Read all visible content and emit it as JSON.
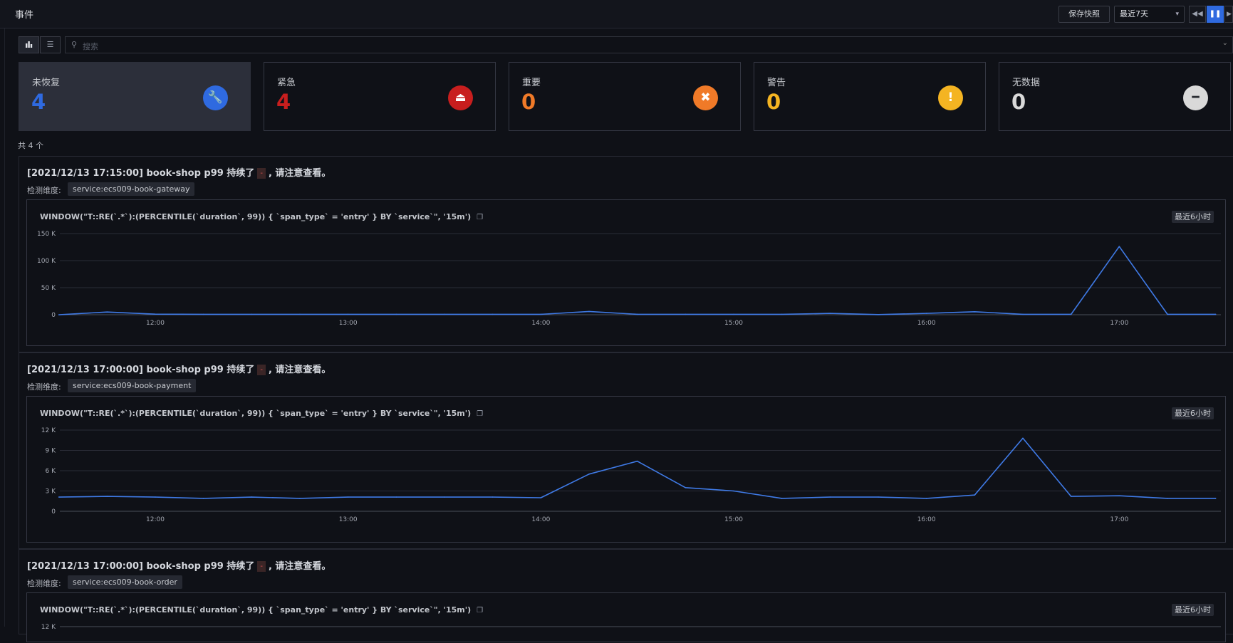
{
  "header": {
    "title": "事件",
    "snapshot_label": "保存快照",
    "time_range": "最近7天",
    "controls": [
      "rewind-icon",
      "pause-icon",
      "play-icon"
    ]
  },
  "toolbar": {
    "search_placeholder": "搜索",
    "views": [
      "bar-chart-icon",
      "list-icon"
    ]
  },
  "stats": [
    {
      "label": "未恢复",
      "value": "4",
      "color": "#2f6ae0",
      "icon": "wrench-icon",
      "glyph": "🔧"
    },
    {
      "label": "紧急",
      "value": "4",
      "color": "#c81e1e",
      "icon": "alarm-icon",
      "glyph": "⏏"
    },
    {
      "label": "重要",
      "value": "0",
      "color": "#f07a28",
      "icon": "x-circle-icon",
      "glyph": "✖"
    },
    {
      "label": "警告",
      "value": "0",
      "color": "#f4b422",
      "icon": "exclamation-icon",
      "glyph": "!"
    },
    {
      "label": "无数据",
      "value": "0",
      "color": "#d9d9d9",
      "icon": "minus-circle-icon",
      "glyph": "━"
    }
  ],
  "total": "共 4 个",
  "events": [
    {
      "title_prefix": "[2021/12/13 17:15:00] book-shop p99 持续了",
      "title_badge": "-",
      "title_suffix": ", 请注意查看。",
      "dimension_label": "检测维度:",
      "dimension": "service:ecs009-book-gateway",
      "query": "WINDOW(\"T::RE(`.*`):(PERCENTILE(`duration`, 99)) { `span_type` = 'entry' } BY `service`\", '15m')",
      "range": "最近6小时",
      "chart_data": {
        "type": "line",
        "yticks": [
          "150 K",
          "100 K",
          "50 K",
          "0"
        ],
        "ylim": [
          0,
          150000
        ],
        "xticks": [
          "12:00",
          "13:00",
          "14:00",
          "15:00",
          "16:00",
          "17:00"
        ],
        "x_domain": [
          "11:30",
          "17:30"
        ],
        "x": [
          "11:30",
          "11:45",
          "12:00",
          "12:15",
          "12:30",
          "12:45",
          "13:00",
          "13:15",
          "13:30",
          "13:45",
          "14:00",
          "14:15",
          "14:30",
          "14:45",
          "15:00",
          "15:15",
          "15:30",
          "15:45",
          "16:00",
          "16:15",
          "16:30",
          "16:45",
          "17:00",
          "17:15",
          "17:30"
        ],
        "values": [
          0,
          5000,
          1000,
          800,
          800,
          800,
          800,
          800,
          800,
          800,
          800,
          6000,
          800,
          800,
          800,
          800,
          2500,
          300,
          2500,
          5500,
          800,
          800,
          126000,
          800,
          800
        ]
      }
    },
    {
      "title_prefix": "[2021/12/13 17:00:00] book-shop p99 持续了",
      "title_badge": "-",
      "title_suffix": ", 请注意查看。",
      "dimension_label": "检测维度:",
      "dimension": "service:ecs009-book-payment",
      "query": "WINDOW(\"T::RE(`.*`):(PERCENTILE(`duration`, 99)) { `span_type` = 'entry' } BY `service`\", '15m')",
      "range": "最近6小时",
      "chart_data": {
        "type": "line",
        "yticks": [
          "12 K",
          "9 K",
          "6 K",
          "3 K",
          "0"
        ],
        "ylim": [
          0,
          12000
        ],
        "xticks": [
          "12:00",
          "13:00",
          "14:00",
          "15:00",
          "16:00",
          "17:00"
        ],
        "x_domain": [
          "11:30",
          "17:30"
        ],
        "x": [
          "11:30",
          "11:45",
          "12:00",
          "12:15",
          "12:30",
          "12:45",
          "13:00",
          "13:15",
          "13:30",
          "13:45",
          "14:00",
          "14:15",
          "14:30",
          "14:45",
          "15:00",
          "15:15",
          "15:30",
          "15:45",
          "16:00",
          "16:15",
          "16:30",
          "16:45",
          "17:00",
          "17:15",
          "17:30"
        ],
        "values": [
          2100,
          2200,
          2100,
          1900,
          2100,
          1900,
          2100,
          2100,
          2100,
          2100,
          2000,
          5500,
          7400,
          3500,
          3000,
          1900,
          2100,
          2100,
          1900,
          2400,
          10800,
          2200,
          2300,
          1900,
          1900
        ]
      }
    },
    {
      "title_prefix": "[2021/12/13 17:00:00] book-shop p99 持续了",
      "title_badge": "-",
      "title_suffix": ", 请注意查看。",
      "dimension_label": "检测维度:",
      "dimension": "service:ecs009-book-order",
      "query": "WINDOW(\"T::RE(`.*`):(PERCENTILE(`duration`, 99)) { `span_type` = 'entry' } BY `service`\", '15m')",
      "range": "最近6小时",
      "chart_data": {
        "type": "line",
        "yticks": [
          "12 K"
        ],
        "ylim": [
          0,
          12000
        ],
        "xticks": [],
        "x": [],
        "values": []
      }
    }
  ]
}
